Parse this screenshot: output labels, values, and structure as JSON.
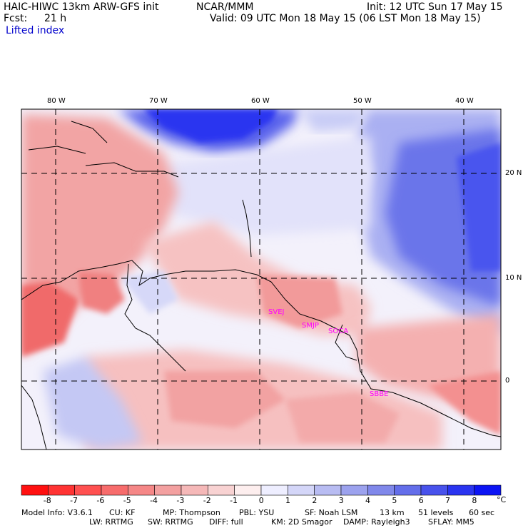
{
  "header": {
    "title_left": "HAIC-HIWC 13km ARW-GFS init",
    "center": "NCAR/MMM",
    "init": "Init: 12 UTC Sun 17 May 15",
    "fcst_label": "Fcst:",
    "fcst_value": "21 h",
    "valid": "Valid: 09 UTC Mon 18 May 15 (06 LST Mon 18 May 15)",
    "field": "Lifted index"
  },
  "map": {
    "lon_labels": [
      "80 W",
      "70 W",
      "60 W",
      "50 W",
      "40 W"
    ],
    "lat_labels": [
      "20 N",
      "10 N",
      "0"
    ],
    "stations": [
      {
        "name": "SVEJ",
        "color": "#ff00ff"
      },
      {
        "name": "SMJP",
        "color": "#ff00ff"
      },
      {
        "name": "SOCA",
        "color": "#ff00ff"
      },
      {
        "name": "SBBE",
        "color": "#ff00ff"
      }
    ]
  },
  "colorbar": {
    "ticks": [
      "-8",
      "-7",
      "-6",
      "-5",
      "-4",
      "-3",
      "-2",
      "-1",
      "0",
      "1",
      "2",
      "3",
      "4",
      "5",
      "6",
      "7",
      "8"
    ],
    "unit": "°C",
    "colors": [
      "#ff1010",
      "#ff3333",
      "#ff5050",
      "#f76c6c",
      "#f58787",
      "#f3a0a0",
      "#f5b8b8",
      "#f8d2d2",
      "#fdeeee",
      "#eeeeff",
      "#d4d6f8",
      "#b8bcf2",
      "#9ca2ee",
      "#8088ea",
      "#646eea",
      "#4852ec",
      "#2a34f0",
      "#0c14f4"
    ]
  },
  "footer": {
    "line1": [
      "Model Info: V3.6.1",
      "CU: KF",
      "MP: Thompson",
      "PBL: YSU",
      "SF: Noah LSM",
      "13 km",
      "51 levels",
      "60 sec"
    ],
    "line2": [
      "LW: RRTMG",
      "SW: RRTMG",
      "DIFF: full",
      "KM: 2D Smagor",
      "DAMP: Rayleigh3",
      "SFLAY: MM5"
    ]
  }
}
